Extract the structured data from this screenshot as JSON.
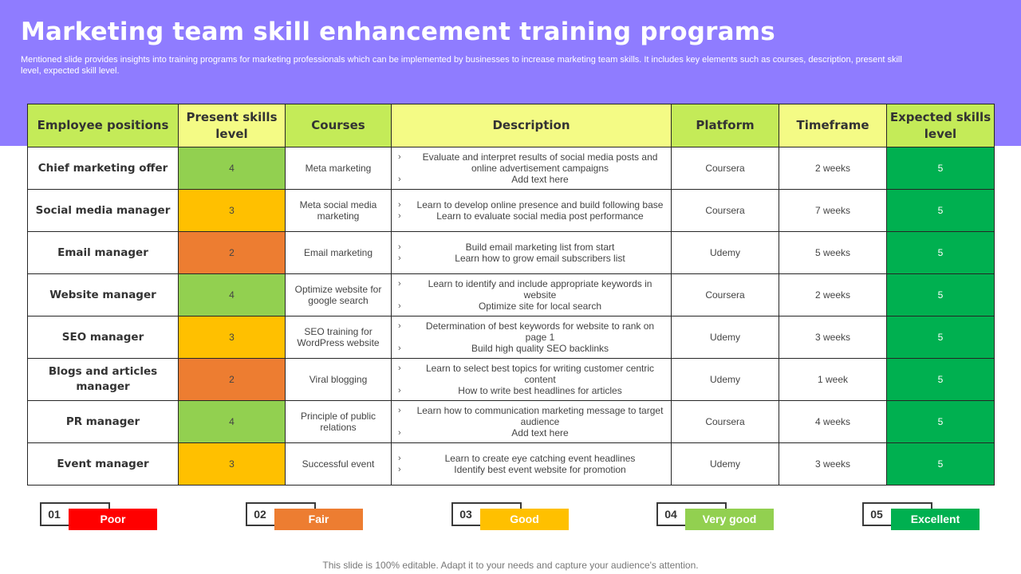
{
  "header": {
    "title": "Marketing team skill enhancement training programs",
    "subtitle": "Mentioned slide provides insights into training programs for marketing professionals which can be implemented by businesses to increase marketing team skills. It includes key elements such as courses, description, present skill level, expected skill level."
  },
  "table": {
    "headers": [
      "Employee positions",
      "Present skills level",
      "Courses",
      "Description",
      "Platform",
      "Timeframe",
      "Expected skills level"
    ],
    "rows": [
      {
        "position": "Chief marketing offer",
        "present": "4",
        "present_color": "#92d050",
        "course": "Meta marketing",
        "desc": [
          "Evaluate and interpret results of social media posts and online advertisement campaigns",
          "Add text here"
        ],
        "platform": "Coursera",
        "timeframe": "2 weeks",
        "expected": "5"
      },
      {
        "position": "Social media manager",
        "present": "3",
        "present_color": "#ffc000",
        "course": "Meta social media marketing",
        "desc": [
          "Learn to develop online presence and build following base",
          "Learn to evaluate social media post performance"
        ],
        "platform": "Coursera",
        "timeframe": "7 weeks",
        "expected": "5"
      },
      {
        "position": "Email manager",
        "present": "2",
        "present_color": "#ed7d31",
        "course": "Email marketing",
        "desc": [
          "Build email marketing list from start",
          "Learn how to  grow email subscribers list"
        ],
        "platform": "Udemy",
        "timeframe": "5 weeks",
        "expected": "5"
      },
      {
        "position": "Website manager",
        "present": "4",
        "present_color": "#92d050",
        "course": "Optimize website for google search",
        "desc": [
          "Learn to identify and include appropriate keywords in website",
          "Optimize site for local search"
        ],
        "platform": "Coursera",
        "timeframe": "2 weeks",
        "expected": "5"
      },
      {
        "position": "SEO manager",
        "present": "3",
        "present_color": "#ffc000",
        "course": "SEO training for WordPress website",
        "desc": [
          "Determination of best keywords for website to rank on page 1",
          "Build high quality SEO  backlinks"
        ],
        "platform": "Udemy",
        "timeframe": "3 weeks",
        "expected": "5"
      },
      {
        "position": "Blogs and articles manager",
        "present": "2",
        "present_color": "#ed7d31",
        "course": "Viral blogging",
        "desc": [
          "Learn to select best topics for writing customer centric content",
          "How to write best headlines for articles"
        ],
        "platform": "Udemy",
        "timeframe": "1 week",
        "expected": "5"
      },
      {
        "position": "PR manager",
        "present": "4",
        "present_color": "#92d050",
        "course": "Principle of public relations",
        "desc": [
          "Learn how to  communication marketing message to target audience",
          "Add text here"
        ],
        "platform": "Coursera",
        "timeframe": "4 weeks",
        "expected": "5"
      },
      {
        "position": "Event manager",
        "present": "3",
        "present_color": "#ffc000",
        "course": "Successful event",
        "desc": [
          "Learn to create eye catching event headlines",
          "Identify best event website for promotion"
        ],
        "platform": "Udemy",
        "timeframe": "3 weeks",
        "expected": "5"
      }
    ]
  },
  "legend": [
    {
      "num": "01",
      "label": "Poor",
      "color": "#ff0000"
    },
    {
      "num": "02",
      "label": "Fair",
      "color": "#ed7d31"
    },
    {
      "num": "03",
      "label": "Good",
      "color": "#ffc000"
    },
    {
      "num": "04",
      "label": "Very good",
      "color": "#92d050"
    },
    {
      "num": "05",
      "label": "Excellent",
      "color": "#00b050"
    }
  ],
  "footer": "This slide is 100% editable. Adapt it to your needs and capture your audience's attention."
}
